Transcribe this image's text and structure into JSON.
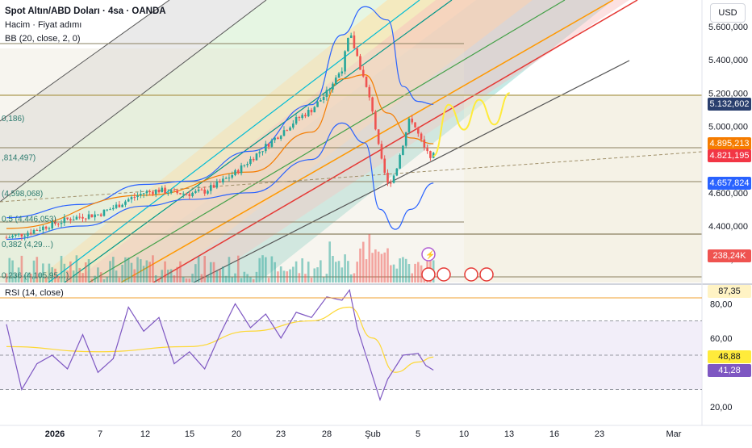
{
  "header": {
    "title": "Spot Altın/ABD Doları · 4sa · OANDA",
    "volume_label": "Hacim · Fiyat adımı",
    "bb_label": "BB (20, close, 2, 0)",
    "currency": "USD"
  },
  "rsi_header": "RSI (14, close)",
  "fib_labels": [
    {
      "text": "0,186)",
      "price": 5050
    },
    {
      "text": ",814,497)",
      "price": 4814.497
    },
    {
      "text": "(4,598,068)",
      "price": 4598.068
    },
    {
      "text": "0,5 (4,446,053)",
      "price": 4446.053
    },
    {
      "text": "0,382 (4,29…)",
      "price": 4294
    },
    {
      "text": "0,236 (4,105,95…)",
      "price": 4105.95
    }
  ],
  "price_tags": [
    {
      "text": "5.132,602",
      "price": 5132.602,
      "color": "#2a3f6e"
    },
    {
      "text": "4.895,213",
      "price": 4895.213,
      "color": "#f57c00"
    },
    {
      "text": "4.821,195",
      "price": 4821.195,
      "color": "#f23645"
    },
    {
      "text": "4.657,824",
      "price": 4657.824,
      "color": "#2962ff"
    },
    {
      "text": "238,24K",
      "price": 4220,
      "color": "#ef5350"
    }
  ],
  "rsi_tags": [
    {
      "text": "87,35",
      "value": 87.35,
      "color": "#fff3c4",
      "textcolor": "#131722"
    },
    {
      "text": "48,88",
      "value": 48.88,
      "color": "#ffeb3b",
      "textcolor": "#131722"
    },
    {
      "text": "41,28",
      "value": 41.28,
      "color": "#7e57c2",
      "textcolor": "#ffffff"
    }
  ],
  "chart_data": {
    "type": "line",
    "title": "Spot Altın/ABD Doları · 4sa · OANDA",
    "y_axis": {
      "ticks": [
        "5.600,000",
        "5.400,000",
        "5.200,000",
        "5.000,000",
        "4.600,000",
        "4.400,000",
        "4.200,000"
      ],
      "range": [
        4060,
        5760
      ]
    },
    "x_axis": {
      "ticks": [
        "2026",
        "7",
        "12",
        "15",
        "20",
        "23",
        "28",
        "Şub",
        "5",
        "10",
        "13",
        "16",
        "23",
        "Mar"
      ]
    },
    "rsi_axis": {
      "ticks": [
        "80,00",
        "60,00",
        "40,00",
        "20,00"
      ],
      "range": [
        10,
        90
      ],
      "levels": [
        70,
        50,
        30
      ]
    },
    "price_series": [
      {
        "d": 0,
        "v": 4330
      },
      {
        "d": 1,
        "v": 4350
      },
      {
        "d": 2,
        "v": 4380
      },
      {
        "d": 3,
        "v": 4410
      },
      {
        "d": 4,
        "v": 4440
      },
      {
        "d": 5,
        "v": 4460
      },
      {
        "d": 6,
        "v": 4470
      },
      {
        "d": 7,
        "v": 4510
      },
      {
        "d": 8,
        "v": 4560
      },
      {
        "d": 9,
        "v": 4600
      },
      {
        "d": 10,
        "v": 4615
      },
      {
        "d": 11,
        "v": 4600
      },
      {
        "d": 12,
        "v": 4595
      },
      {
        "d": 13,
        "v": 4610
      },
      {
        "d": 14,
        "v": 4660
      },
      {
        "d": 15,
        "v": 4720
      },
      {
        "d": 16,
        "v": 4800
      },
      {
        "d": 17,
        "v": 4880
      },
      {
        "d": 18,
        "v": 4960
      },
      {
        "d": 19,
        "v": 5040
      },
      {
        "d": 20,
        "v": 5100
      },
      {
        "d": 21,
        "v": 5200
      },
      {
        "d": 22,
        "v": 5350
      },
      {
        "d": 22.5,
        "v": 5560
      },
      {
        "d": 23,
        "v": 5420
      },
      {
        "d": 24,
        "v": 5100
      },
      {
        "d": 24.5,
        "v": 4820
      },
      {
        "d": 25,
        "v": 4650
      },
      {
        "d": 25.5,
        "v": 4720
      },
      {
        "d": 26,
        "v": 4900
      },
      {
        "d": 26.5,
        "v": 5060
      },
      {
        "d": 27,
        "v": 4950
      },
      {
        "d": 27.5,
        "v": 4840
      },
      {
        "d": 28,
        "v": 4821
      }
    ],
    "bb_upper": [
      {
        "d": 0,
        "v": 4450
      },
      {
        "d": 5,
        "v": 4530
      },
      {
        "d": 9,
        "v": 4650
      },
      {
        "d": 12,
        "v": 4670
      },
      {
        "d": 16,
        "v": 4850
      },
      {
        "d": 20,
        "v": 5130
      },
      {
        "d": 22,
        "v": 5550
      },
      {
        "d": 23.5,
        "v": 5720
      },
      {
        "d": 25,
        "v": 5640
      },
      {
        "d": 26,
        "v": 5240
      },
      {
        "d": 27,
        "v": 5150
      },
      {
        "d": 28,
        "v": 5132
      }
    ],
    "bb_lower": [
      {
        "d": 0,
        "v": 4320
      },
      {
        "d": 5,
        "v": 4400
      },
      {
        "d": 9,
        "v": 4520
      },
      {
        "d": 12,
        "v": 4560
      },
      {
        "d": 16,
        "v": 4600
      },
      {
        "d": 20,
        "v": 4800
      },
      {
        "d": 22,
        "v": 5020
      },
      {
        "d": 23.5,
        "v": 4900
      },
      {
        "d": 24.5,
        "v": 4500
      },
      {
        "d": 25.5,
        "v": 4380
      },
      {
        "d": 26.5,
        "v": 4500
      },
      {
        "d": 28,
        "v": 4658
      }
    ],
    "bb_basis": [
      {
        "d": 0,
        "v": 4385
      },
      {
        "d": 9,
        "v": 4585
      },
      {
        "d": 16,
        "v": 4725
      },
      {
        "d": 20,
        "v": 4965
      },
      {
        "d": 22,
        "v": 5285
      },
      {
        "d": 23.5,
        "v": 5310
      },
      {
        "d": 25,
        "v": 5080
      },
      {
        "d": 26.5,
        "v": 4930
      },
      {
        "d": 28,
        "v": 4895
      }
    ],
    "projection": [
      {
        "d": 28,
        "v": 4821
      },
      {
        "d": 29,
        "v": 5130
      },
      {
        "d": 30,
        "v": 4980
      },
      {
        "d": 31,
        "v": 5160
      },
      {
        "d": 32,
        "v": 5010
      },
      {
        "d": 33,
        "v": 5200
      }
    ],
    "rsi_series": [
      {
        "d": 0,
        "v": 68
      },
      {
        "d": 1,
        "v": 30
      },
      {
        "d": 2,
        "v": 45
      },
      {
        "d": 3,
        "v": 50
      },
      {
        "d": 4,
        "v": 42
      },
      {
        "d": 5,
        "v": 62
      },
      {
        "d": 6,
        "v": 40
      },
      {
        "d": 7,
        "v": 48
      },
      {
        "d": 8,
        "v": 78
      },
      {
        "d": 9,
        "v": 64
      },
      {
        "d": 10,
        "v": 72
      },
      {
        "d": 11,
        "v": 45
      },
      {
        "d": 12,
        "v": 52
      },
      {
        "d": 13,
        "v": 42
      },
      {
        "d": 14,
        "v": 62
      },
      {
        "d": 15,
        "v": 80
      },
      {
        "d": 16,
        "v": 66
      },
      {
        "d": 17,
        "v": 74
      },
      {
        "d": 18,
        "v": 60
      },
      {
        "d": 19,
        "v": 75
      },
      {
        "d": 20,
        "v": 72
      },
      {
        "d": 21,
        "v": 84
      },
      {
        "d": 22,
        "v": 82
      },
      {
        "d": 22.5,
        "v": 88
      },
      {
        "d": 23,
        "v": 66
      },
      {
        "d": 24,
        "v": 38
      },
      {
        "d": 24.5,
        "v": 24
      },
      {
        "d": 25,
        "v": 36
      },
      {
        "d": 26,
        "v": 50
      },
      {
        "d": 27,
        "v": 51
      },
      {
        "d": 27.5,
        "v": 44
      },
      {
        "d": 28,
        "v": 41.28
      }
    ],
    "rsi_ma": [
      {
        "d": 0,
        "v": 55
      },
      {
        "d": 6,
        "v": 52
      },
      {
        "d": 12,
        "v": 55
      },
      {
        "d": 16,
        "v": 64
      },
      {
        "d": 20,
        "v": 70
      },
      {
        "d": 22.5,
        "v": 78
      },
      {
        "d": 24,
        "v": 60
      },
      {
        "d": 25.5,
        "v": 40
      },
      {
        "d": 27,
        "v": 46
      },
      {
        "d": 28,
        "v": 48.88
      }
    ]
  },
  "colors": {
    "up": "#26a69a",
    "down": "#ef5350",
    "bb": "#2962ff",
    "basis": "#f57c00",
    "rsi": "#7e57c2",
    "rsi_ma": "#fdd835",
    "projection": "#ffeb3b"
  }
}
